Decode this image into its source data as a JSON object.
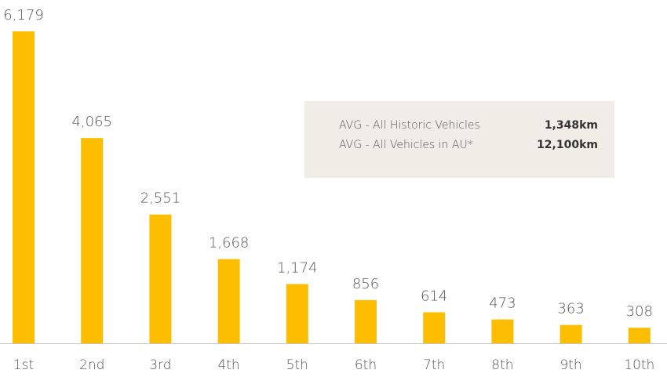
{
  "chart_data": {
    "type": "bar",
    "categories": [
      "1st",
      "2nd",
      "3rd",
      "4th",
      "5th",
      "6th",
      "7th",
      "8th",
      "9th",
      "10th"
    ],
    "values": [
      6179,
      4065,
      2551,
      1668,
      1174,
      856,
      614,
      473,
      363,
      308
    ],
    "value_labels": [
      "6,179",
      "4,065",
      "2,551",
      "1,668",
      "1,174",
      "856",
      "614",
      "473",
      "363",
      "308"
    ],
    "color": "#fdbd00",
    "ylim": [
      0,
      6500
    ],
    "annotations": [
      {
        "label": "AVG - All Historic Vehicles",
        "value": "1,348km"
      },
      {
        "label": "AVG - All Vehicles in AU*",
        "value": "12,100km"
      }
    ]
  }
}
